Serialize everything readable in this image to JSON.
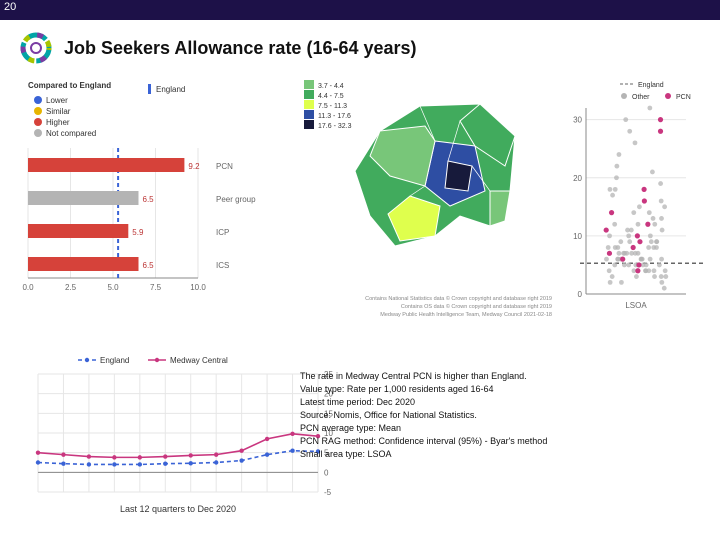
{
  "header": {
    "page_number": "20"
  },
  "title": "Job Seekers Allowance rate (16-64 years)",
  "bar_chart": {
    "type": "bar-horizontal",
    "compared_label": "Compared to England",
    "legend": [
      {
        "label": "Lower",
        "color": "#3a63d6"
      },
      {
        "label": "Similar",
        "color": "#e7b500"
      },
      {
        "label": "Higher",
        "color": "#d6423a"
      },
      {
        "label": "Not compared",
        "color": "#b4b4b4"
      }
    ],
    "england_marker": {
      "label": "England",
      "color": "#3a63d6",
      "value": 5.3
    },
    "xlim": [
      0,
      10
    ],
    "xtick_step": 2.5,
    "bars": [
      {
        "cat": "PCN",
        "value": 9.2,
        "color": "#d6423a"
      },
      {
        "cat": "Peer group",
        "value": 6.5,
        "color": "#b4b4b4"
      },
      {
        "cat": "ICP",
        "value": 5.9,
        "color": "#d6423a"
      },
      {
        "cat": "ICS",
        "value": 6.5,
        "color": "#d6423a"
      }
    ]
  },
  "map": {
    "legend_label_col": "rate",
    "bins": [
      {
        "label": "3.7 - 4.4",
        "color": "#78c679"
      },
      {
        "label": "4.4 - 7.5",
        "color": "#41ab5d"
      },
      {
        "label": "7.5 - 11.3",
        "color": "#dfff4d"
      },
      {
        "label": "11.3 - 17.6",
        "color": "#2e4ea3"
      },
      {
        "label": "17.6 - 32.3",
        "color": "#171a3b"
      }
    ],
    "credit1": "Contains National Statistics data © Crown copyright and database right 2019",
    "credit2": "Contains OS data © Crown copyright and database right 2019",
    "credit3": "Medway Public Health Intelligence Team, Medway Council  2021-02-18"
  },
  "scatter": {
    "type": "strip",
    "legend": [
      {
        "label": "England",
        "style": "dash",
        "color": "#666"
      },
      {
        "label": "Other",
        "style": "dot",
        "color": "#b4b4b4"
      },
      {
        "label": "PCN",
        "style": "dot",
        "color": "#c9367f"
      }
    ],
    "ylim": [
      0,
      32
    ],
    "ytick_step": 10,
    "england_value": 5.3,
    "xlabel": "LSOA",
    "grey_points": [
      1,
      2,
      2,
      2,
      3,
      3,
      3,
      3,
      3,
      4,
      4,
      4,
      4,
      4,
      4,
      4,
      5,
      5,
      5,
      5,
      5,
      5,
      5,
      5,
      6,
      6,
      6,
      6,
      6,
      6,
      6,
      6,
      6,
      7,
      7,
      7,
      7,
      7,
      7,
      7,
      8,
      8,
      8,
      8,
      8,
      8,
      9,
      9,
      9,
      9,
      9,
      10,
      10,
      10,
      11,
      11,
      11,
      12,
      12,
      12,
      13,
      13,
      14,
      14,
      15,
      15,
      16,
      17,
      18,
      18,
      19,
      20,
      21,
      22,
      24,
      26,
      28,
      30,
      32
    ],
    "magenta_points": [
      4,
      5,
      6,
      7,
      8,
      9,
      10,
      11,
      12,
      14,
      16,
      18,
      28,
      30
    ]
  },
  "trend": {
    "type": "line",
    "legend": [
      {
        "label": "England",
        "color": "#3a63d6",
        "dash": true
      },
      {
        "label": "Medway Central",
        "color": "#c9367f",
        "dash": false
      }
    ],
    "ylim": [
      -5,
      25
    ],
    "yticks": [
      25,
      20,
      15,
      10,
      5,
      0,
      -5
    ],
    "xlabel": "Last 12 quarters to Dec 2020",
    "n_points": 12,
    "england_series": [
      2.5,
      2.2,
      2.0,
      2.0,
      2.0,
      2.2,
      2.3,
      2.5,
      3.0,
      4.5,
      5.5,
      5.3
    ],
    "medway_series": [
      5.0,
      4.5,
      4.0,
      3.8,
      3.8,
      4.0,
      4.3,
      4.5,
      5.5,
      8.5,
      9.8,
      9.2
    ]
  },
  "info": {
    "lines": [
      "The rate in Medway Central PCN is higher than England.",
      "Value type: Rate per 1,000 residents aged 16-64",
      "Latest time period: Dec 2020",
      "Source: Nomis, Office for National Statistics.",
      "PCN average type: Mean",
      "PCN RAG method: Confidence interval (95%) - Byar's method",
      "Small area type: LSOA"
    ]
  },
  "colors": {
    "header_bg": "#1d1148",
    "bg": "#ffffff"
  }
}
